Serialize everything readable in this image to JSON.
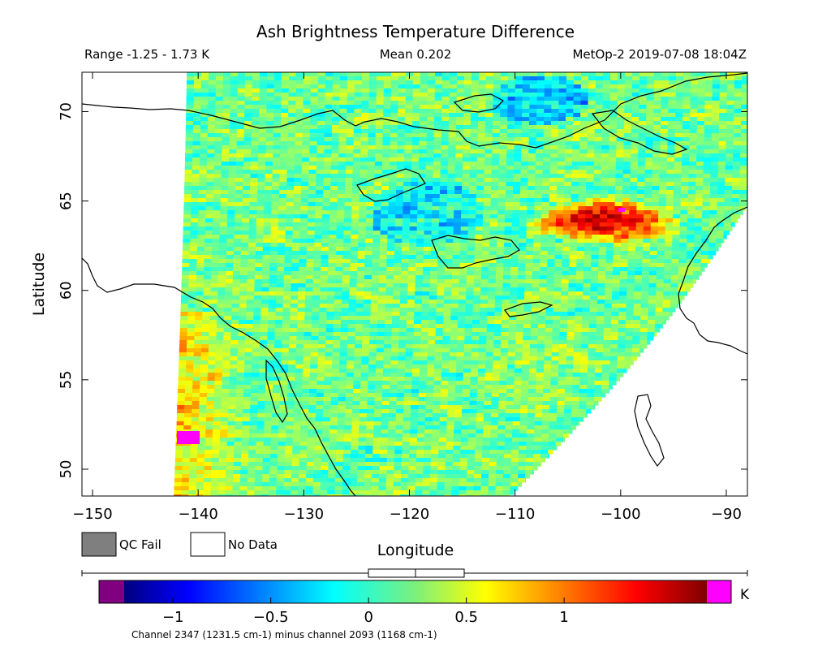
{
  "chart_data": {
    "type": "heatmap",
    "title": "Ash Brightness Temperature Difference",
    "subtitle_left": "Range -1.25 - 1.73 K",
    "subtitle_center": "Mean 0.202",
    "subtitle_right": "MetOp-2 2019-07-08 18:04Z",
    "xlabel": "Longitude",
    "ylabel": "Latitude",
    "xlim": [
      -151,
      -88
    ],
    "ylim": [
      48.5,
      72.2
    ],
    "xticks": [
      -150,
      -140,
      -130,
      -120,
      -110,
      -100,
      -90
    ],
    "xtick_labels": [
      "−150",
      "−140",
      "−130",
      "−120",
      "−110",
      "−100",
      "−90"
    ],
    "yticks": [
      50,
      55,
      60,
      65,
      70
    ],
    "ytick_labels": [
      "50",
      "55",
      "60",
      "65",
      "70"
    ],
    "grid": false,
    "colorbar": {
      "min": -1.25,
      "max": 1.73,
      "ticks": [
        -1,
        -0.5,
        0,
        0.5,
        1
      ],
      "tick_labels": [
        "−1",
        "−0.5",
        "0",
        "0.5",
        "1"
      ],
      "unit": "K",
      "under_color": "#800080",
      "over_color": "#ff00ff",
      "caption": "Channel 2347 (1231.5 cm-1) minus channel 2093 (1168 cm-1)"
    },
    "legend": [
      {
        "label": "QC Fail",
        "color": "#7f7f7f"
      },
      {
        "label": "No Data",
        "color": "#ffffff"
      }
    ],
    "mean": 0.202,
    "range": [
      -1.25,
      1.73
    ]
  }
}
